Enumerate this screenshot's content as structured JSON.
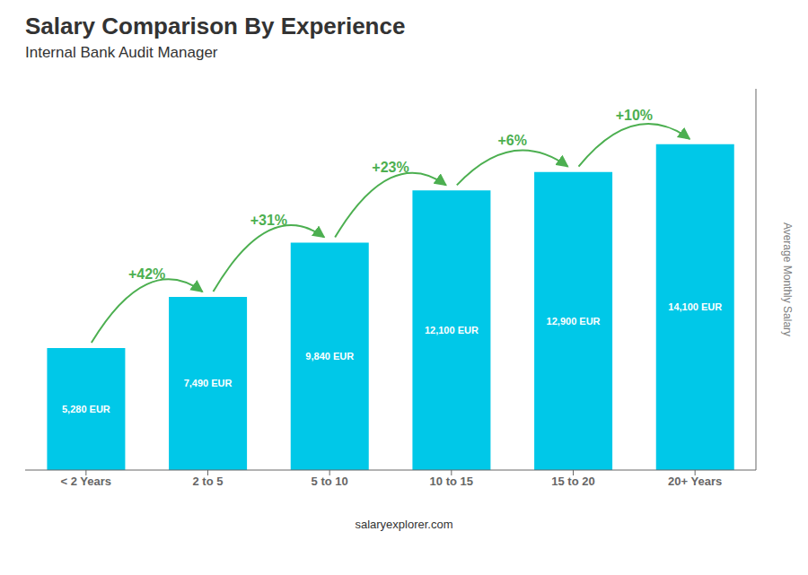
{
  "chart_data": {
    "type": "bar",
    "title": "Salary Comparison By Experience",
    "subtitle": "Internal Bank Audit Manager",
    "ylabel": "Average Monthly Salary",
    "footer": "salaryexplorer.com",
    "categories": [
      "< 2 Years",
      "2 to 5",
      "5 to 10",
      "10 to 15",
      "15 to 20",
      "20+ Years"
    ],
    "values": [
      5280,
      7490,
      9840,
      12100,
      12900,
      14100
    ],
    "value_labels": [
      "5,280 EUR",
      "7,490 EUR",
      "9,840 EUR",
      "12,100 EUR",
      "12,900 EUR",
      "14,100 EUR"
    ],
    "data_labels": true,
    "color": "#00c8e8",
    "ylim": [
      0,
      16500
    ],
    "tick_labels": "x",
    "grid": false,
    "annotations": [
      {
        "text": "+42%",
        "from": "< 2 Years",
        "to": "2 to 5",
        "color": "#4caf50"
      },
      {
        "text": "+31%",
        "from": "2 to 5",
        "to": "5 to 10",
        "color": "#4caf50"
      },
      {
        "text": "+23%",
        "from": "5 to 10",
        "to": "10 to 15",
        "color": "#4caf50"
      },
      {
        "text": "+6%",
        "from": "10 to 15",
        "to": "15 to 20",
        "color": "#4caf50"
      },
      {
        "text": "+10%",
        "from": "15 to 20",
        "to": "20+ Years",
        "color": "#4caf50"
      }
    ]
  }
}
